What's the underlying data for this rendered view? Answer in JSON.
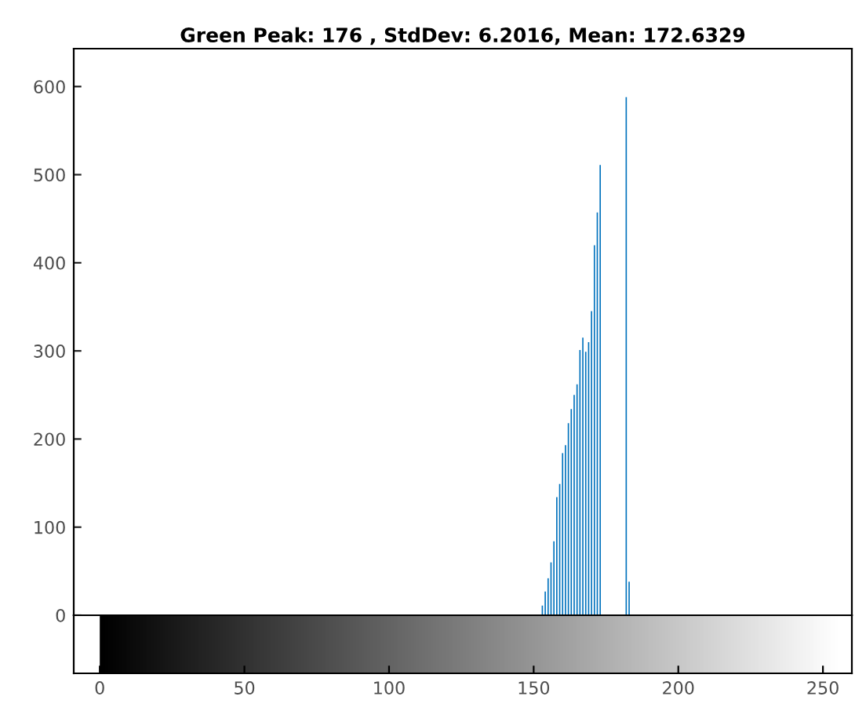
{
  "chart_data": {
    "type": "bar",
    "title": "Green Peak: 176 , StdDev: 6.2016, Mean: 172.6329",
    "x": [
      153,
      154,
      155,
      156,
      157,
      158,
      159,
      160,
      161,
      162,
      163,
      164,
      165,
      166,
      167,
      168,
      169,
      170,
      171,
      172,
      173,
      174,
      175,
      176,
      177,
      178,
      179,
      180,
      181,
      182,
      183
    ],
    "values": [
      11,
      27,
      42,
      60,
      84,
      134,
      149,
      184,
      193,
      218,
      234,
      250,
      262,
      301,
      315,
      299,
      310,
      345,
      420,
      457,
      511,
      null,
      null,
      null,
      null,
      null,
      null,
      null,
      null,
      588,
      38
    ],
    "color": "#0072bd",
    "xlim": [
      -9,
      260
    ],
    "xticks": [
      0,
      50,
      100,
      150,
      200,
      250
    ],
    "ylim": [
      0,
      643
    ],
    "yticks": [
      0,
      100,
      200,
      300,
      400,
      500,
      600
    ],
    "grid": false
  }
}
